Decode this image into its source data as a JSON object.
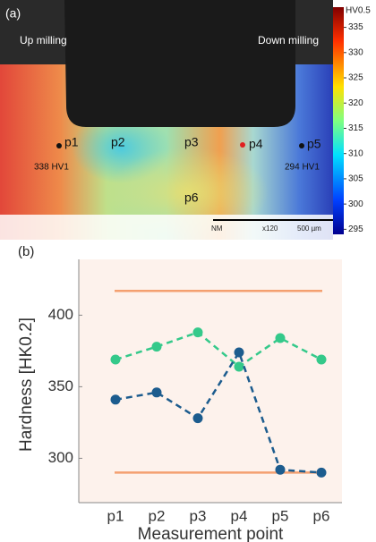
{
  "chart_data": [
    {
      "type": "heatmap",
      "label": "(a)",
      "annotations": [
        "Up milling",
        "Down milling",
        "p1",
        "p2",
        "p3",
        "p4",
        "p5",
        "p6",
        "338 HV1",
        "294 HV1"
      ],
      "scale_bar": [
        "NM",
        "x120",
        "500 µm"
      ],
      "colorbar": {
        "title": "HV0.5",
        "lim": [
          294,
          339
        ],
        "ticks": [
          295,
          300,
          305,
          310,
          315,
          320,
          325,
          330,
          335
        ]
      }
    },
    {
      "type": "line",
      "label": "(b)",
      "x_label": "Measurement point",
      "y_label": "Hardness [HK0.2]",
      "categories": [
        "p1",
        "p2",
        "p3",
        "p4",
        "p5",
        "p6"
      ],
      "series": [
        {
          "color": "#34c98a",
          "values": [
            369,
            378,
            388,
            364,
            384,
            369
          ]
        },
        {
          "color": "#1c5c8e",
          "values": [
            341,
            346,
            328,
            374,
            292,
            290
          ]
        }
      ],
      "hlines": [
        417,
        290
      ],
      "hline_color": "#f4a070",
      "ylim": [
        269,
        439
      ],
      "yticks": [
        300,
        350,
        400
      ]
    }
  ]
}
